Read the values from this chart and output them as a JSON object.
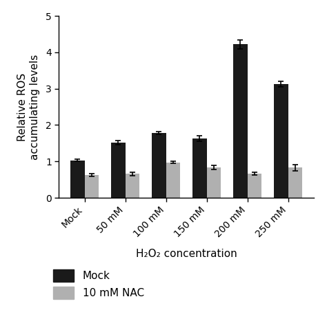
{
  "categories": [
    "Mock",
    "50 mM",
    "100 mM",
    "150 mM",
    "200 mM",
    "250 mM"
  ],
  "mock_values": [
    1.03,
    1.52,
    1.78,
    1.63,
    4.22,
    3.13
  ],
  "nac_values": [
    0.62,
    0.66,
    0.97,
    0.84,
    0.67,
    0.83
  ],
  "mock_errors": [
    0.03,
    0.06,
    0.04,
    0.07,
    0.12,
    0.08
  ],
  "nac_errors": [
    0.04,
    0.05,
    0.03,
    0.06,
    0.04,
    0.09
  ],
  "mock_color": "#1a1a1a",
  "nac_color": "#b0b0b0",
  "bar_width": 0.35,
  "ylabel": "Relative ROS\naccumulating levels",
  "xlabel": "H₂O₂ concentration",
  "ylim": [
    0,
    5
  ],
  "yticks": [
    0,
    1,
    2,
    3,
    4,
    5
  ],
  "legend_labels": [
    "Mock",
    "10 mM NAC"
  ],
  "background_color": "#ffffff",
  "label_fontsize": 11,
  "tick_fontsize": 10,
  "legend_fontsize": 11
}
